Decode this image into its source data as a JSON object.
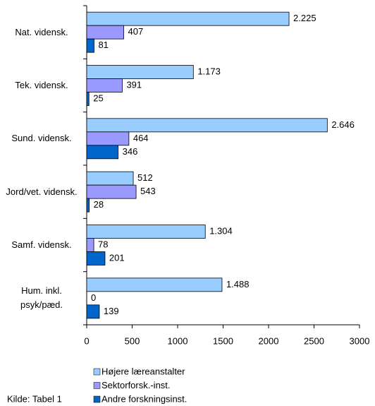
{
  "chart_data": {
    "type": "hbar",
    "categories": [
      "Nat. vidensk.",
      "Tek. vidensk.",
      "Sund. vidensk.",
      "Jord/vet. vidensk.",
      "Samf. vidensk.",
      "Hum. inkl. psyk/pæd."
    ],
    "series": [
      {
        "name": "Højere læreanstalter",
        "color": "#99ccff",
        "values": [
          2225,
          1173,
          2646,
          512,
          1304,
          1488
        ],
        "value_labels": [
          "2.225",
          "1.173",
          "2.646",
          "512",
          "1.304",
          "1.488"
        ]
      },
      {
        "name": "Sektorforsk.-inst.",
        "color": "#9999ff",
        "values": [
          407,
          391,
          464,
          543,
          78,
          0
        ]
      },
      {
        "name": "Andre forskningsinst.",
        "color": "#0066cc",
        "values": [
          81,
          25,
          346,
          28,
          201,
          139
        ]
      }
    ],
    "xlim": [
      0,
      3000
    ],
    "xticks": [
      0,
      500,
      1000,
      1500,
      2000,
      2500,
      3000
    ],
    "source": "Kilde: Tabel 1"
  }
}
